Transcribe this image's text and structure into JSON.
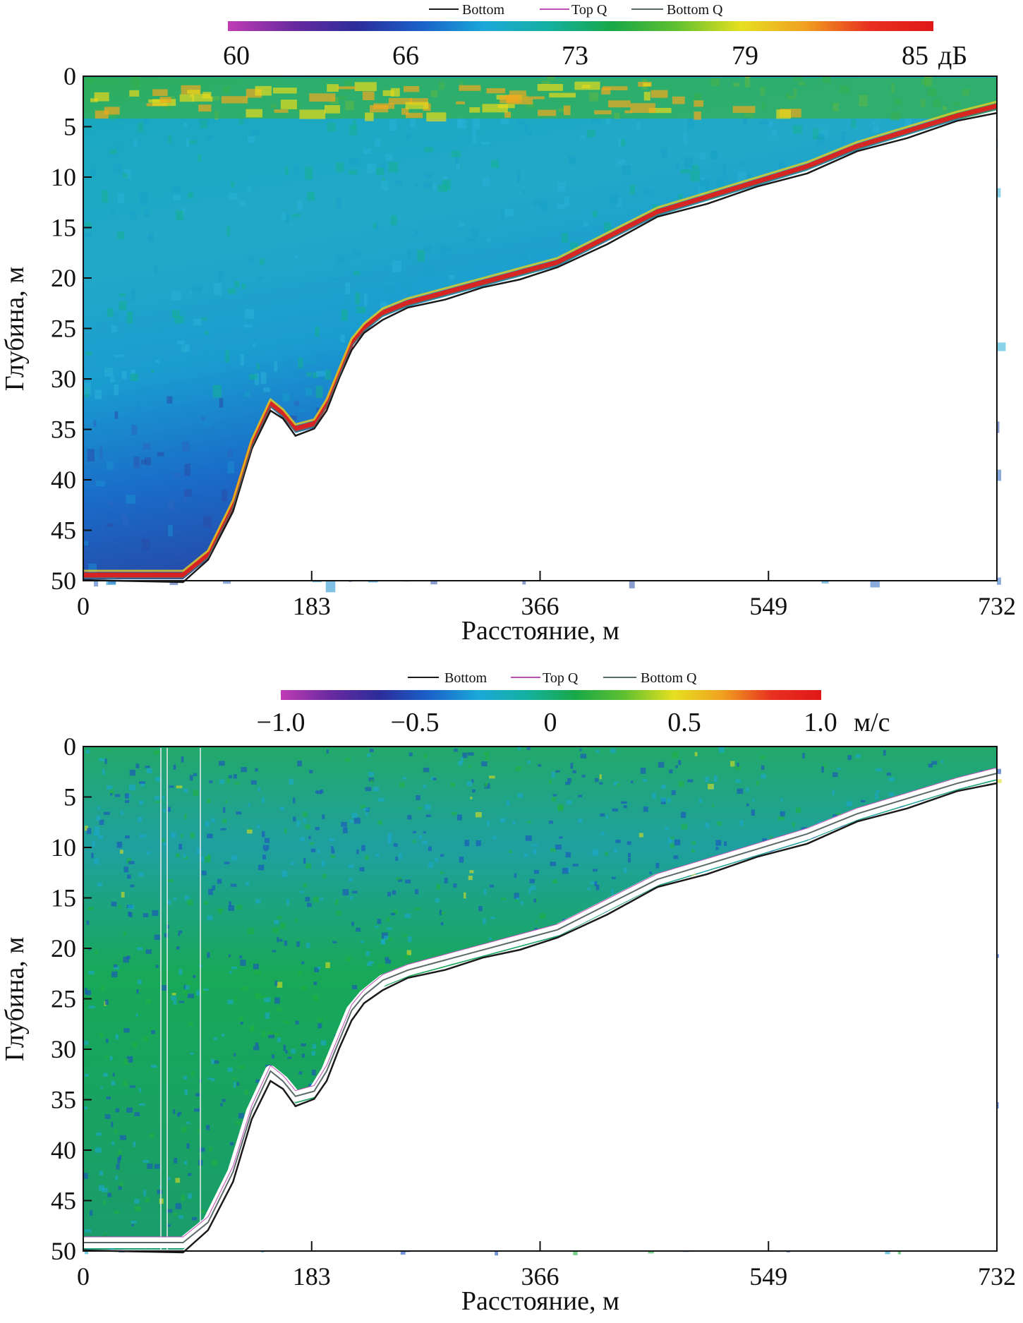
{
  "colors": {
    "bottom_line": "#1a1a1a",
    "top_q_line": "#c050b8",
    "bottom_q_line": "#5a6a6a",
    "colormap": [
      "#c03cb4",
      "#6a2aa0",
      "#2c2c9a",
      "#1a60c8",
      "#1aa8d8",
      "#14b0a0",
      "#18a848",
      "#60c030",
      "#e6e020",
      "#f0a020",
      "#e83020",
      "#e01818"
    ]
  },
  "chart_data": [
    {
      "type": "heatmap",
      "panel": "backscatter",
      "legend": [
        {
          "name": "Bottom",
          "color": "#1a1a1a"
        },
        {
          "name": "Top Q",
          "color": "#c050b8"
        },
        {
          "name": "Bottom Q",
          "color": "#5a6a6a"
        }
      ],
      "colorbar": {
        "min": 60,
        "max": 85,
        "ticks": [
          "60",
          "66",
          "73",
          "79",
          "85"
        ],
        "tick_values": [
          60,
          66,
          73,
          79,
          85
        ],
        "unit": "дБ"
      },
      "xlabel": "Расстояние, м",
      "ylabel": "Глубина, м",
      "x_ticks": [
        "0",
        "183",
        "366",
        "549",
        "732"
      ],
      "x_tick_values": [
        0,
        183,
        366,
        549,
        732
      ],
      "y_ticks": [
        "0",
        "5",
        "10",
        "15",
        "20",
        "25",
        "30",
        "35",
        "40",
        "45",
        "50"
      ],
      "y_tick_values": [
        0,
        5,
        10,
        15,
        20,
        25,
        30,
        35,
        40,
        45,
        50
      ],
      "xlim": [
        0,
        732
      ],
      "ylim": [
        50,
        0
      ],
      "bottom_profile": {
        "x": [
          0,
          80,
          100,
          120,
          135,
          150,
          160,
          170,
          185,
          195,
          205,
          215,
          225,
          240,
          260,
          290,
          320,
          350,
          380,
          420,
          460,
          500,
          540,
          580,
          620,
          660,
          700,
          732
        ],
        "y": [
          50,
          50,
          48,
          43,
          37,
          33,
          34,
          35.5,
          35,
          33,
          30,
          27,
          25.5,
          24,
          23,
          22,
          21,
          20,
          19,
          16.5,
          14,
          12.5,
          11,
          9.5,
          7.5,
          6,
          4.5,
          3.5
        ]
      }
    },
    {
      "type": "heatmap",
      "panel": "velocity",
      "legend": [
        {
          "name": "Bottom",
          "color": "#1a1a1a"
        },
        {
          "name": "Top Q",
          "color": "#c050b8"
        },
        {
          "name": "Bottom Q",
          "color": "#5a6a6a"
        }
      ],
      "colorbar": {
        "min": -1.0,
        "max": 1.0,
        "ticks": [
          "−1.0",
          "−0.5",
          "0",
          "0.5",
          "1.0"
        ],
        "tick_values": [
          -1.0,
          -0.5,
          0,
          0.5,
          1.0
        ],
        "unit": "м/с"
      },
      "xlabel": "Расстояние, м",
      "ylabel": "Глубина, м",
      "x_ticks": [
        "0",
        "183",
        "366",
        "549",
        "732"
      ],
      "x_tick_values": [
        0,
        183,
        366,
        549,
        732
      ],
      "y_ticks": [
        "0",
        "5",
        "10",
        "15",
        "20",
        "25",
        "30",
        "35",
        "40",
        "45",
        "50"
      ],
      "y_tick_values": [
        0,
        5,
        10,
        15,
        20,
        25,
        30,
        35,
        40,
        45,
        50
      ],
      "xlim": [
        0,
        732
      ],
      "ylim": [
        50,
        0
      ],
      "bottom_profile": {
        "x": [
          0,
          80,
          100,
          120,
          135,
          150,
          160,
          170,
          185,
          195,
          205,
          215,
          225,
          240,
          260,
          290,
          320,
          350,
          380,
          420,
          460,
          500,
          540,
          580,
          620,
          660,
          700,
          732
        ],
        "y": [
          50,
          50,
          48,
          43,
          37,
          33,
          34,
          35.5,
          35,
          33,
          30,
          27,
          25.5,
          24,
          23,
          22,
          21,
          20,
          19,
          16.5,
          14,
          12.5,
          11,
          9.5,
          7.5,
          6,
          4.5,
          3.5
        ]
      }
    }
  ]
}
